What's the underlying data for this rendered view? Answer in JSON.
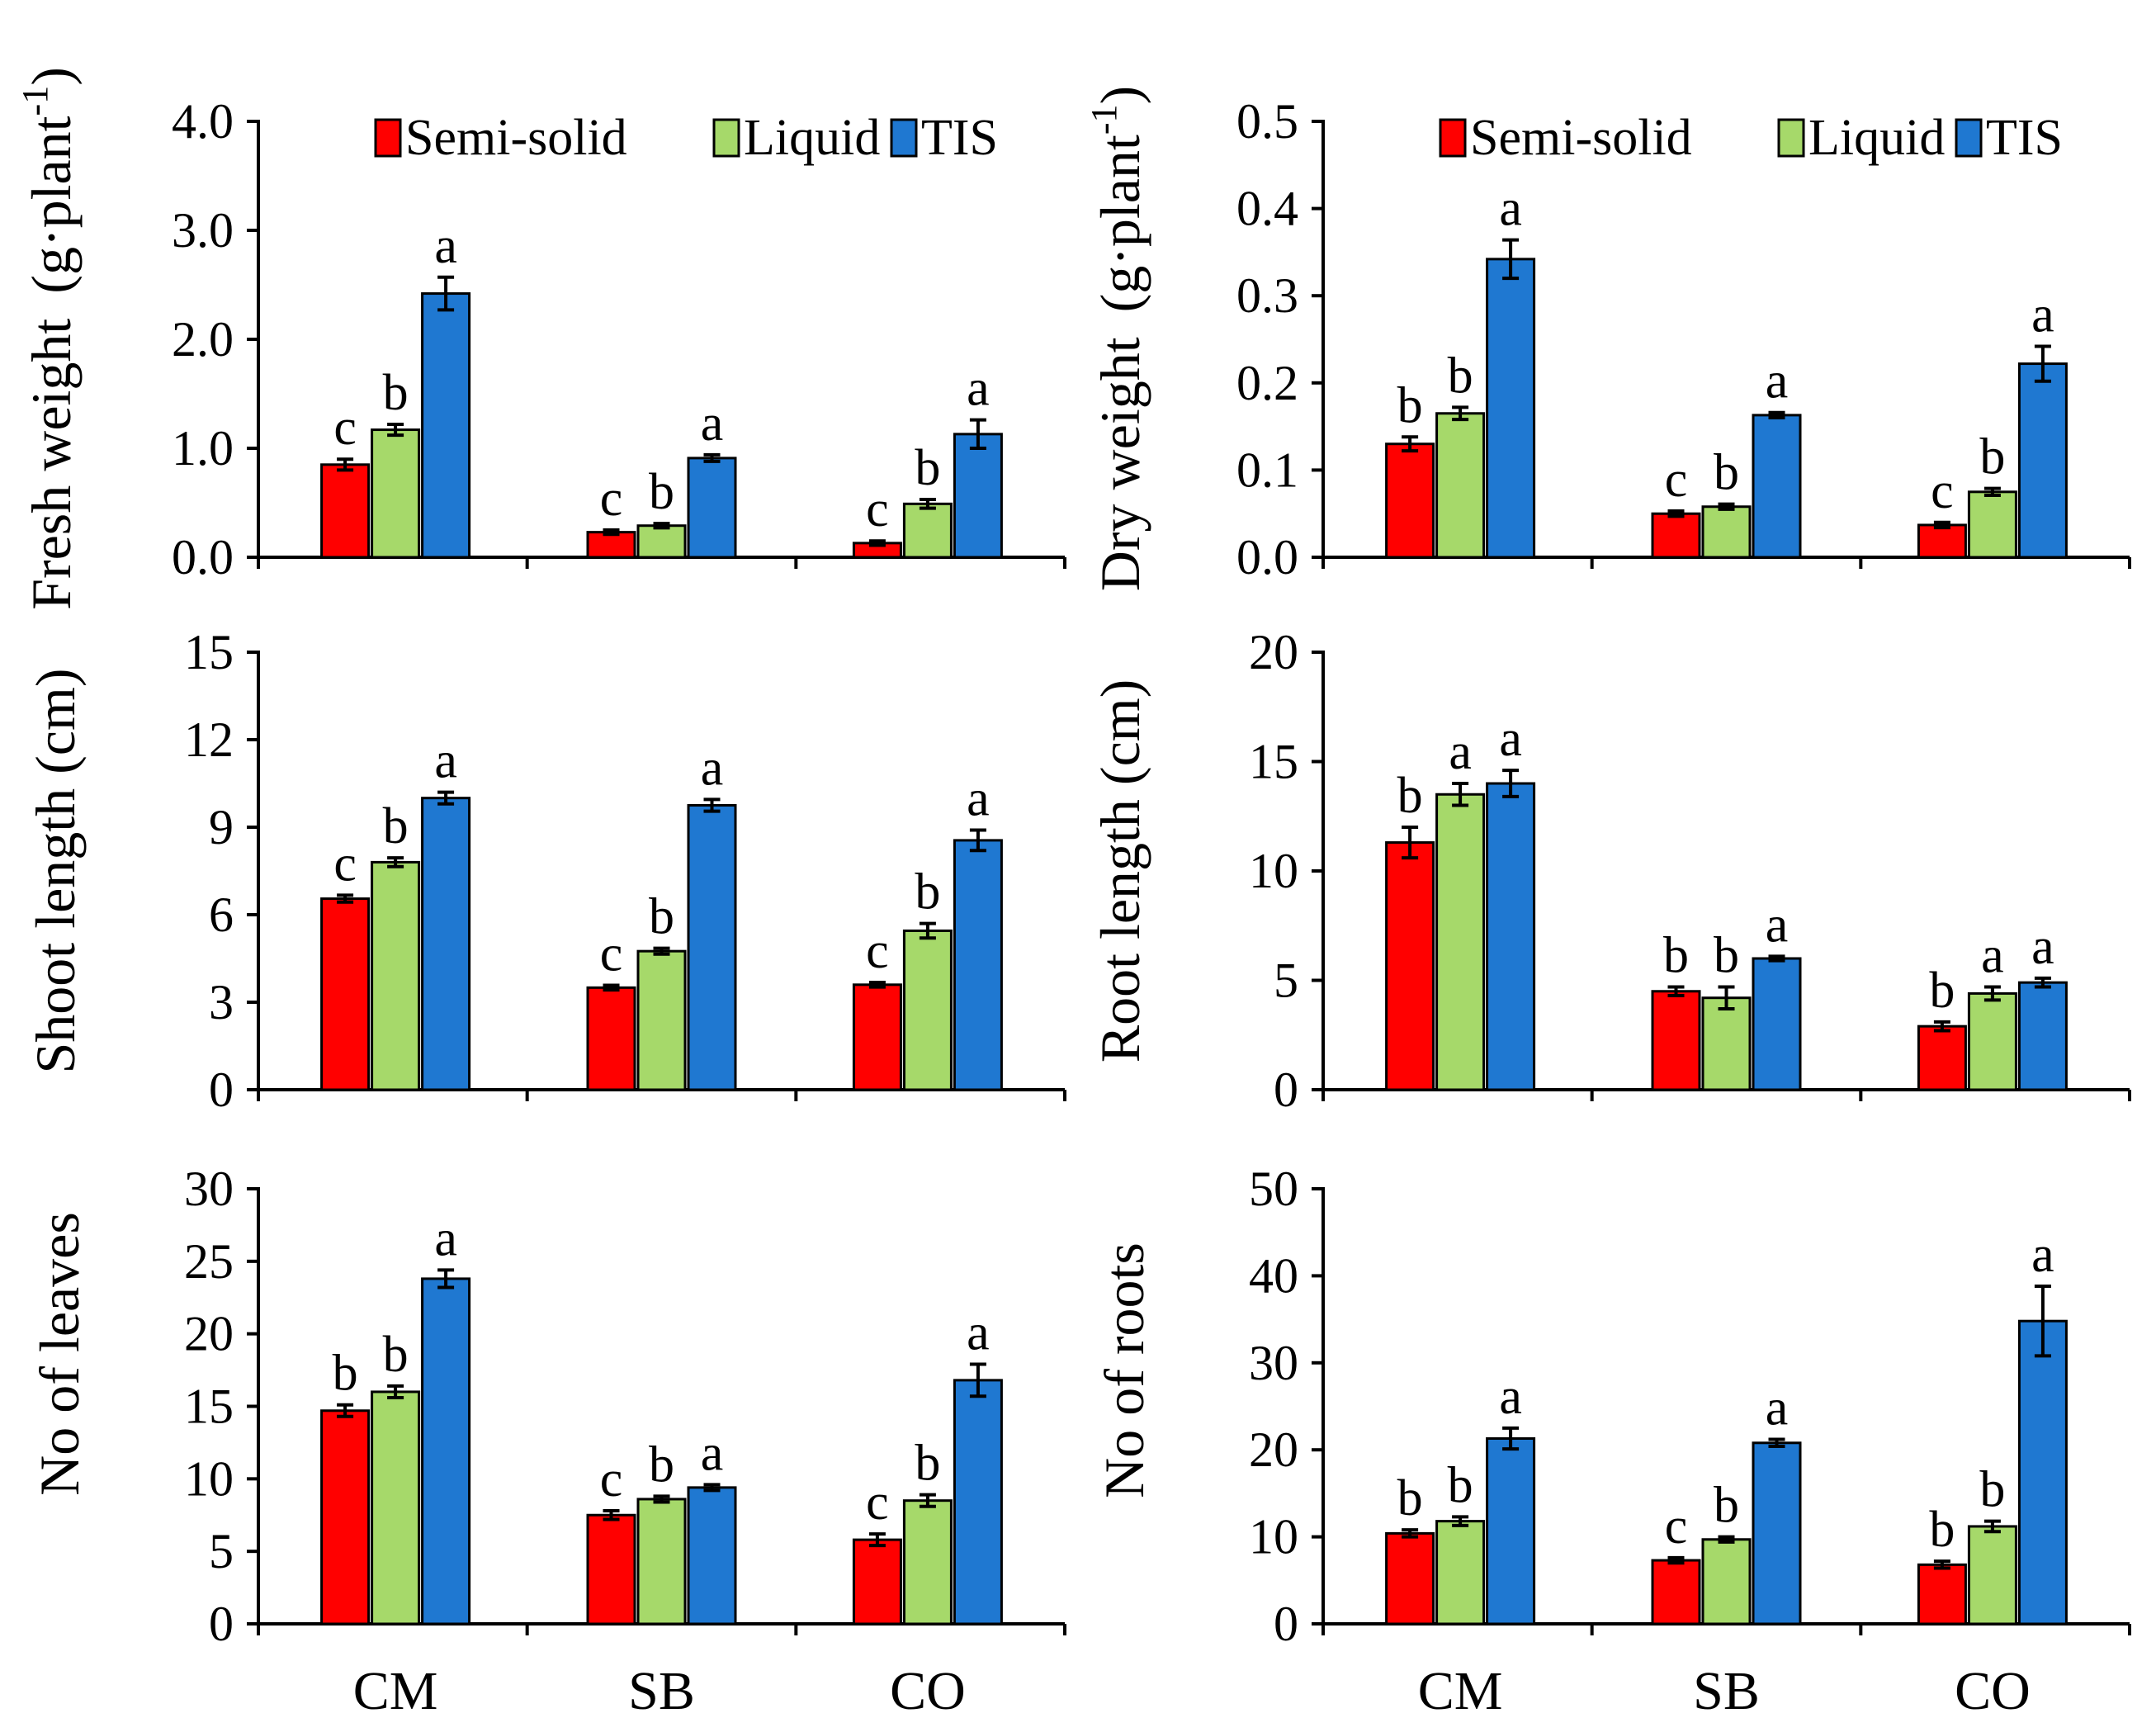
{
  "legend": [
    "Semi-solid",
    "Liquid",
    "TIS"
  ],
  "colors": {
    "Semi-solid": "#ff0000",
    "Liquid": "#a6d96a",
    "TIS": "#1f78d1"
  },
  "chart_data": [
    {
      "type": "bar",
      "ylabel": "Fresh weight",
      "ylabel_unit": "(g·plant",
      "ylabel_sup": "-1",
      "ylabel_close": ")",
      "ylim": [
        0,
        4.0
      ],
      "yticks": [
        "0.0",
        "1.0",
        "2.0",
        "3.0",
        "4.0"
      ],
      "categories": [
        "CM",
        "SB",
        "CO"
      ],
      "series": [
        {
          "name": "Semi-solid",
          "values": [
            0.85,
            0.23,
            0.13
          ],
          "errors": [
            0.05,
            0.02,
            0.02
          ],
          "letters": [
            "c",
            "c",
            "c"
          ]
        },
        {
          "name": "Liquid",
          "values": [
            1.17,
            0.29,
            0.49
          ],
          "errors": [
            0.05,
            0.02,
            0.04
          ],
          "letters": [
            "b",
            "b",
            "b"
          ]
        },
        {
          "name": "TIS",
          "values": [
            2.42,
            0.91,
            1.13
          ],
          "errors": [
            0.15,
            0.03,
            0.13
          ],
          "letters": [
            "a",
            "a",
            "a"
          ]
        }
      ],
      "legend_visible": true
    },
    {
      "type": "bar",
      "ylabel": "Dry weight",
      "ylabel_unit": "(g·plant",
      "ylabel_sup": "-1",
      "ylabel_close": ")",
      "ylim": [
        0,
        0.5
      ],
      "yticks": [
        "0.0",
        "0.1",
        "0.2",
        "0.3",
        "0.4",
        "0.5"
      ],
      "categories": [
        "CM",
        "SB",
        "CO"
      ],
      "series": [
        {
          "name": "Semi-solid",
          "values": [
            0.13,
            0.05,
            0.037
          ],
          "errors": [
            0.008,
            0.003,
            0.003
          ],
          "letters": [
            "b",
            "c",
            "c"
          ]
        },
        {
          "name": "Liquid",
          "values": [
            0.165,
            0.058,
            0.075
          ],
          "errors": [
            0.007,
            0.003,
            0.004
          ],
          "letters": [
            "b",
            "b",
            "b"
          ]
        },
        {
          "name": "TIS",
          "values": [
            0.342,
            0.163,
            0.222
          ],
          "errors": [
            0.022,
            0.003,
            0.02
          ],
          "letters": [
            "a",
            "a",
            "a"
          ]
        }
      ],
      "legend_visible": true
    },
    {
      "type": "bar",
      "ylabel": "Shoot length (cm)",
      "ylim": [
        0,
        15
      ],
      "yticks": [
        "0",
        "3",
        "6",
        "9",
        "12",
        "15"
      ],
      "categories": [
        "CM",
        "SB",
        "CO"
      ],
      "series": [
        {
          "name": "Semi-solid",
          "values": [
            6.55,
            3.5,
            3.6
          ],
          "errors": [
            0.12,
            0.08,
            0.08
          ],
          "letters": [
            "c",
            "c",
            "c"
          ]
        },
        {
          "name": "Liquid",
          "values": [
            7.8,
            4.75,
            5.45
          ],
          "errors": [
            0.15,
            0.1,
            0.25
          ],
          "letters": [
            "b",
            "b",
            "b"
          ]
        },
        {
          "name": "TIS",
          "values": [
            10.0,
            9.75,
            8.55
          ],
          "errors": [
            0.2,
            0.2,
            0.35
          ],
          "letters": [
            "a",
            "a",
            "a"
          ]
        }
      ],
      "legend_visible": false
    },
    {
      "type": "bar",
      "ylabel": "Root length (cm)",
      "ylim": [
        0,
        20
      ],
      "yticks": [
        "0",
        "5",
        "10",
        "15",
        "20"
      ],
      "categories": [
        "CM",
        "SB",
        "CO"
      ],
      "series": [
        {
          "name": "Semi-solid",
          "values": [
            11.3,
            4.5,
            2.9
          ],
          "errors": [
            0.7,
            0.2,
            0.2
          ],
          "letters": [
            "b",
            "b",
            "b"
          ]
        },
        {
          "name": "Liquid",
          "values": [
            13.5,
            4.2,
            4.4
          ],
          "errors": [
            0.5,
            0.5,
            0.3
          ],
          "letters": [
            "a",
            "b",
            "a"
          ]
        },
        {
          "name": "TIS",
          "values": [
            14.0,
            6.0,
            4.9
          ],
          "errors": [
            0.6,
            0.1,
            0.2
          ],
          "letters": [
            "a",
            "a",
            "a"
          ]
        }
      ],
      "legend_visible": false
    },
    {
      "type": "bar",
      "ylabel": "No of leaves",
      "ylim": [
        0,
        30
      ],
      "yticks": [
        "0",
        "5",
        "10",
        "15",
        "20",
        "25",
        "30"
      ],
      "categories": [
        "CM",
        "SB",
        "CO"
      ],
      "series": [
        {
          "name": "Semi-solid",
          "values": [
            14.7,
            7.5,
            5.8
          ],
          "errors": [
            0.4,
            0.3,
            0.4
          ],
          "letters": [
            "b",
            "c",
            "c"
          ]
        },
        {
          "name": "Liquid",
          "values": [
            16.0,
            8.6,
            8.5
          ],
          "errors": [
            0.4,
            0.2,
            0.4
          ],
          "letters": [
            "b",
            "b",
            "b"
          ]
        },
        {
          "name": "TIS",
          "values": [
            23.8,
            9.4,
            16.8
          ],
          "errors": [
            0.6,
            0.2,
            1.1
          ],
          "letters": [
            "a",
            "a",
            "a"
          ]
        }
      ],
      "legend_visible": false
    },
    {
      "type": "bar",
      "ylabel": "No of roots",
      "ylim": [
        0,
        50
      ],
      "yticks": [
        "0",
        "10",
        "20",
        "30",
        "40",
        "50"
      ],
      "categories": [
        "CM",
        "SB",
        "CO"
      ],
      "series": [
        {
          "name": "Semi-solid",
          "values": [
            10.4,
            7.3,
            6.8
          ],
          "errors": [
            0.4,
            0.3,
            0.4
          ],
          "letters": [
            "b",
            "c",
            "b"
          ]
        },
        {
          "name": "Liquid",
          "values": [
            11.8,
            9.7,
            11.2
          ],
          "errors": [
            0.5,
            0.3,
            0.6
          ],
          "letters": [
            "b",
            "b",
            "b"
          ]
        },
        {
          "name": "TIS",
          "values": [
            21.3,
            20.8,
            34.8
          ],
          "errors": [
            1.2,
            0.4,
            4.0
          ],
          "letters": [
            "a",
            "a",
            "a"
          ]
        }
      ],
      "legend_visible": false
    }
  ],
  "x_categories": [
    "CM",
    "SB",
    "CO"
  ]
}
